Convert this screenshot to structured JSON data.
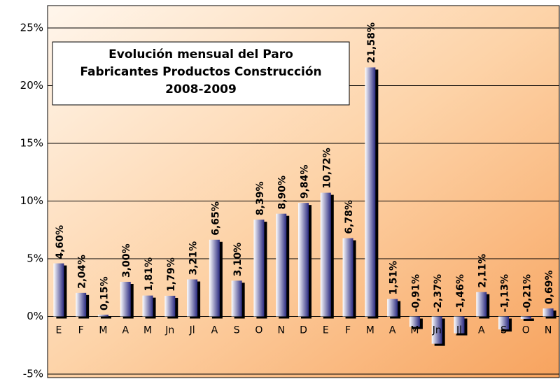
{
  "chart_data": {
    "type": "bar",
    "title": [
      "Evolución mensual del Paro",
      "Fabricantes Productos Construcción",
      "2008-2009"
    ],
    "categories": [
      "E",
      "F",
      "M",
      "A",
      "M",
      "Jn",
      "Jl",
      "A",
      "S",
      "O",
      "N",
      "D",
      "E",
      "F",
      "M",
      "A",
      "M",
      "Jn",
      "Jl",
      "A",
      "S",
      "O",
      "N"
    ],
    "values": [
      4.6,
      2.04,
      0.15,
      3.0,
      1.81,
      1.79,
      3.21,
      6.65,
      3.1,
      8.39,
      8.9,
      9.84,
      10.72,
      6.78,
      21.58,
      1.51,
      -0.91,
      -2.37,
      -1.46,
      2.11,
      -1.13,
      -0.21,
      0.69
    ],
    "value_labels": [
      "4,60%",
      "2,04%",
      "0,15%",
      "3,00%",
      "1,81%",
      "1,79%",
      "3,21%",
      "6,65%",
      "3,10%",
      "8,39%",
      "8,90%",
      "9,84%",
      "10,72%",
      "6,78%",
      "21,58%",
      "1,51%",
      "-0,91%",
      "-2,37%",
      "-1,46%",
      "2,11%",
      "-1,13%",
      "-0,21%",
      "0,69%"
    ],
    "color": "#2a2a80",
    "ylim": [
      -5,
      25
    ],
    "yticks": [
      {
        "value": -5,
        "label": "-5%"
      },
      {
        "value": 0,
        "label": "0%"
      },
      {
        "value": 5,
        "label": "5%"
      },
      {
        "value": 10,
        "label": "10%"
      },
      {
        "value": 15,
        "label": "15%"
      },
      {
        "value": 20,
        "label": "20%"
      },
      {
        "value": 25,
        "label": "25%"
      }
    ],
    "grid": true
  }
}
